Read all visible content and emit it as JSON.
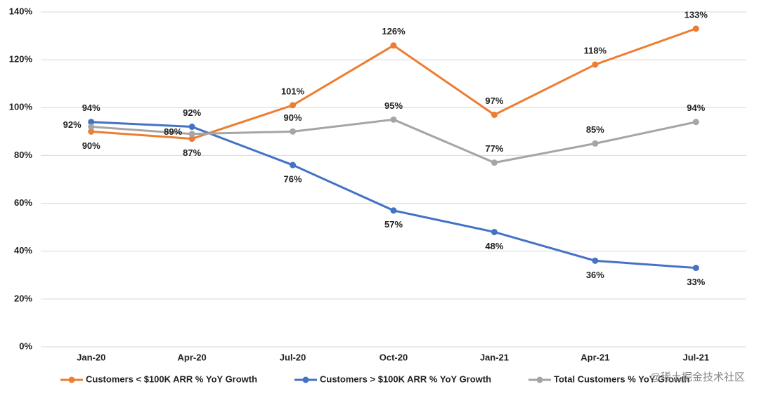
{
  "chart_data": {
    "type": "line",
    "categories": [
      "Jan-20",
      "Apr-20",
      "Jul-20",
      "Oct-20",
      "Jan-21",
      "Apr-21",
      "Jul-21"
    ],
    "series": [
      {
        "name": "Customers < $100K ARR % YoY Growth",
        "color": "#ED7D31",
        "values": [
          90,
          87,
          101,
          126,
          97,
          118,
          133
        ],
        "value_labels": [
          "90%",
          "87%",
          "101%",
          "126%",
          "97%",
          "118%",
          "133%"
        ]
      },
      {
        "name": "Customers > $100K ARR % YoY Growth",
        "color": "#4472C4",
        "values": [
          94,
          92,
          76,
          57,
          48,
          36,
          33
        ],
        "value_labels": [
          "94%",
          "92%",
          "76%",
          "57%",
          "48%",
          "36%",
          "33%"
        ]
      },
      {
        "name": "Total Customers % YoY Growth",
        "color": "#A5A5A5",
        "values": [
          92,
          89,
          90,
          95,
          77,
          85,
          94
        ],
        "value_labels": [
          "92%",
          "89%",
          "90%",
          "95%",
          "77%",
          "85%",
          "94%"
        ]
      }
    ],
    "ylim": [
      0,
      140
    ],
    "yticks": [
      {
        "value": 0,
        "label": "0%"
      },
      {
        "value": 20,
        "label": "20%"
      },
      {
        "value": 40,
        "label": "40%"
      },
      {
        "value": 60,
        "label": "60%"
      },
      {
        "value": 80,
        "label": "80%"
      },
      {
        "value": 100,
        "label": "100%"
      },
      {
        "value": 120,
        "label": "120%"
      },
      {
        "value": 140,
        "label": "140%"
      }
    ],
    "grid": true,
    "legend": "bottom",
    "watermark": "@稀土掘金技术社区"
  }
}
